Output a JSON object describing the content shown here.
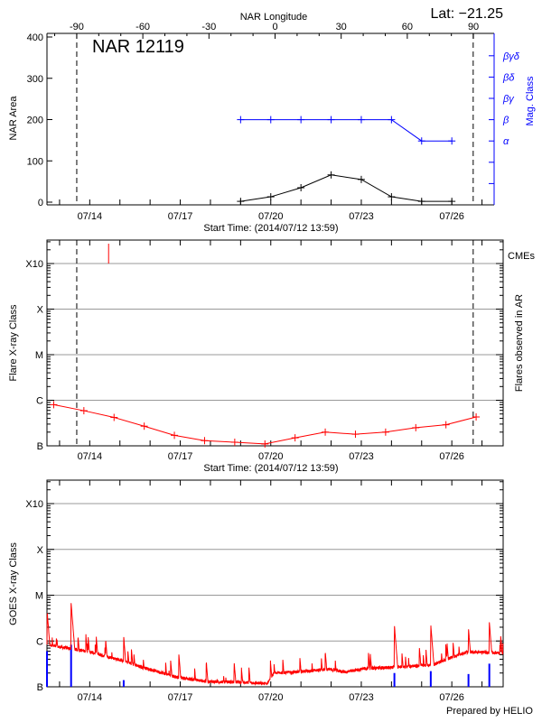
{
  "header": {
    "lat_label": "Lat: −21.25",
    "prepared_by": "Prepared by HELIO"
  },
  "shared": {
    "xlim": [
      "2014-07-12 13:59",
      "2014-07-27 16:50"
    ],
    "xticks": [
      "07/14",
      "07/17",
      "07/20",
      "07/23",
      "07/26"
    ],
    "xtick_dates": [
      "2014-07-14 00:00",
      "2014-07-17 00:00",
      "2014-07-20 00:00",
      "2014-07-23 00:00",
      "2014-07-26 00:00"
    ],
    "xlabel": "Start Time: (2014/07/12 13:59)",
    "limb_dates": [
      "2014-07-13 13:40",
      "2014-07-26 17:00"
    ],
    "flux_ticks": [
      "B",
      "C",
      "M",
      "X",
      "X10"
    ],
    "flux_lim": [
      1e-07,
      0.001
    ],
    "grid_color": "#999999"
  },
  "chart_data": [
    {
      "type": "line",
      "title": "NAR 12119",
      "top_xlabel": "NAR Longitude",
      "top_xlim": [
        -103.5,
        99.4
      ],
      "top_xticks": [
        "-90",
        "-60",
        "-30",
        "0",
        "30",
        "60",
        "90"
      ],
      "ylabel": "NAR Area",
      "ylim": [
        0,
        400
      ],
      "yticks": [
        "0",
        "100",
        "200",
        "300",
        "400"
      ],
      "y2label": "Mag. Class",
      "y2ticks": [
        "α",
        "β",
        "βγ",
        "βδ",
        "βγδ"
      ],
      "x": [
        "2014-07-19 00:00",
        "2014-07-20 00:00",
        "2014-07-21 00:00",
        "2014-07-22 00:00",
        "2014-07-23 00:00",
        "2014-07-24 00:00",
        "2014-07-25 00:00",
        "2014-07-26 00:00"
      ],
      "series": [
        {
          "values": [
            2,
            13,
            35,
            66,
            55,
            13,
            2,
            2
          ],
          "color": "#000000"
        },
        {
          "values": [
            "β",
            "β",
            "β",
            "β",
            "β",
            "β",
            "α",
            "α"
          ],
          "color": "#0000ff"
        }
      ]
    },
    {
      "type": "line",
      "ylabel": "Flare X-ray Class",
      "y2label": "Flares observed in AR",
      "x": [
        "2014-07-12 19:20",
        "2014-07-13 19:20",
        "2014-07-14 19:20",
        "2014-07-15 19:20",
        "2014-07-16 19:20",
        "2014-07-17 19:20",
        "2014-07-18 19:20",
        "2014-07-19 19:20",
        "2014-07-20 19:20",
        "2014-07-21 19:20",
        "2014-07-22 19:20",
        "2014-07-23 19:20",
        "2014-07-24 19:20",
        "2014-07-25 19:20",
        "2014-07-26 19:20"
      ],
      "values": [
        8e-07,
        5.9e-07,
        4.2e-07,
        2.7e-07,
        1.7e-07,
        1.3e-07,
        1.2e-07,
        1.1e-07,
        1.5e-07,
        2e-07,
        1.8e-07,
        2e-07,
        2.5e-07,
        2.9e-07,
        4.3e-07
      ],
      "color": "#ff0000",
      "cmes": {
        "label": "CMEs",
        "dates": [
          "2014-07-14 15:00"
        ],
        "color": "#ff0000"
      }
    },
    {
      "type": "line",
      "ylabel": "GOES X-ray Class",
      "color": "#ff0000",
      "baseline": {
        "x": [
          "2014-07-12 14:00",
          "2014-07-13 08:00",
          "2014-07-14 00:00",
          "2014-07-14 11:00",
          "2014-07-15 01:00",
          "2014-07-15 15:00",
          "2014-07-16 05:00",
          "2014-07-16 18:30",
          "2014-07-17 05:30",
          "2014-07-17 22:00",
          "2014-07-19 01:30",
          "2014-07-19 21:00",
          "2014-07-20 02:30",
          "2014-07-20 19:00",
          "2014-07-21 22:30",
          "2014-07-22 12:00",
          "2014-07-23 02:00",
          "2014-07-24 05:30",
          "2014-07-25 09:00",
          "2014-07-26 00:00",
          "2014-07-26 12:45",
          "2014-07-27 16:50"
        ],
        "y": [
          8.1e-07,
          6.9e-07,
          5.8e-07,
          4.8e-07,
          3.8e-07,
          2.8e-07,
          2.2e-07,
          1.7e-07,
          1.5e-07,
          1.3e-07,
          1.26e-07,
          1.17e-07,
          2e-07,
          2.1e-07,
          2.4e-07,
          2.1e-07,
          2.5e-07,
          2.7e-07,
          3e-07,
          4.4e-07,
          5.8e-07,
          5.5e-07
        ]
      },
      "peaks": {
        "x": [
          "2014-07-12 14:10",
          "2014-07-13 09:10",
          "2014-07-13 14:40",
          "2014-07-13 20:55",
          "2014-07-14 12:40",
          "2014-07-15 03:00",
          "2014-07-16 12:20",
          "2014-07-16 22:50",
          "2014-07-17 20:40",
          "2014-07-18 18:50",
          "2014-07-19 23:40",
          "2014-07-21 19:20",
          "2014-07-23 05:40",
          "2014-07-24 02:20",
          "2014-07-24 22:10",
          "2014-07-25 07:15",
          "2014-07-25 20:10",
          "2014-07-26 13:15",
          "2014-07-27 05:50",
          "2014-07-27 14:55"
        ],
        "y": [
          4.3e-06,
          6.8e-06,
          1.3e-06,
          1.4e-06,
          1.1e-06,
          1.27e-06,
          3.5e-07,
          5.4e-07,
          3.7e-07,
          3.5e-07,
          3.9e-07,
          6e-07,
          5.7e-07,
          2.2e-06,
          7.5e-07,
          2.3e-06,
          9.4e-07,
          1.9e-06,
          2.6e-06,
          1.27e-06
        ]
      },
      "events": {
        "x": [
          "2014-07-12 14:00",
          "2014-07-13 09:10",
          "2014-07-15 03:00",
          "2014-07-24 02:20",
          "2014-07-25 07:15",
          "2014-07-26 13:15",
          "2014-07-27 05:50"
        ],
        "y": [
          6e-07,
          8.3e-07,
          1.4e-07,
          2e-07,
          2.2e-07,
          1.9e-07,
          3.2e-07
        ],
        "color": "#0000ff"
      }
    }
  ]
}
